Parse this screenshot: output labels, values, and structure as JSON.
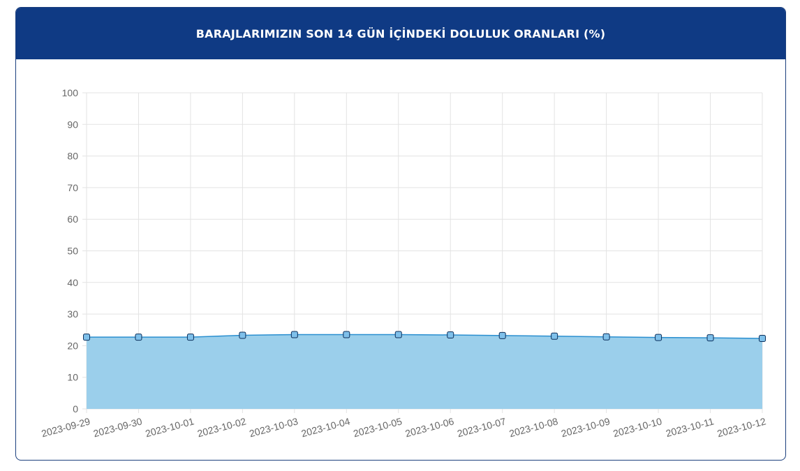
{
  "header": {
    "title": "BARAJLARIMIZIN SON 14 GÜN İÇİNDEKİ DOLULUK ORANLARI (%)"
  },
  "colors": {
    "header_bg": "#0f3a84",
    "line": "#2a8fd0",
    "fill": "#9bcfeb",
    "grid": "#e3e3e3",
    "tick_text": "#666666"
  },
  "chart_data": {
    "type": "area",
    "title": "BARAJLARIMIZIN SON 14 GÜN İÇİNDEKİ DOLULUK ORANLARI (%)",
    "xlabel": "",
    "ylabel": "",
    "ylim": [
      0,
      100
    ],
    "yticks": [
      0,
      10,
      20,
      30,
      40,
      50,
      60,
      70,
      80,
      90,
      100
    ],
    "grid": true,
    "legend": "none",
    "categories": [
      "2023-09-29",
      "2023-09-30",
      "2023-10-01",
      "2023-10-02",
      "2023-10-03",
      "2023-10-04",
      "2023-10-05",
      "2023-10-06",
      "2023-10-07",
      "2023-10-08",
      "2023-10-09",
      "2023-10-10",
      "2023-10-11",
      "2023-10-12"
    ],
    "series": [
      {
        "values": [
          22.7,
          22.7,
          22.7,
          23.3,
          23.5,
          23.5,
          23.5,
          23.4,
          23.2,
          23.0,
          22.8,
          22.6,
          22.5,
          22.3
        ]
      }
    ]
  }
}
